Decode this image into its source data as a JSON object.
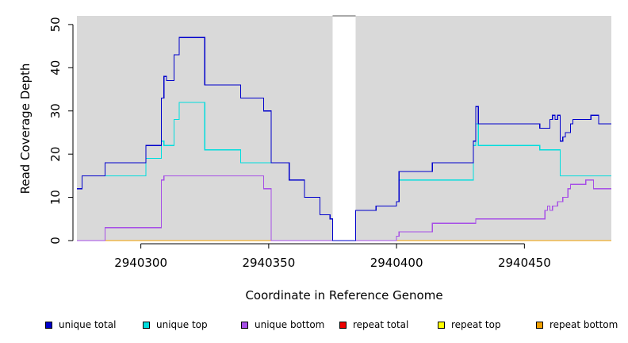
{
  "chart_data": {
    "type": "line",
    "title": "",
    "xlabel": "Coordinate in Reference Genome",
    "ylabel": "Read Coverage Depth",
    "xlim": [
      2940275,
      2940484
    ],
    "ylim": [
      0,
      52
    ],
    "x_ticks": [
      2940300,
      2940350,
      2940400,
      2940450
    ],
    "x_tick_labels": [
      "2940300",
      "2940350",
      "2940400",
      "2940450"
    ],
    "y_ticks": [
      0,
      10,
      20,
      30,
      40,
      50
    ],
    "y_tick_labels": [
      "0",
      "10",
      "20",
      "30",
      "40",
      "50"
    ],
    "background": "#d9d9d9",
    "gap": {
      "start": 2940375,
      "end": 2940384
    },
    "grid": false,
    "legend_position": "bottom",
    "series": [
      {
        "name": "unique total",
        "color": "#0000cc",
        "steps": [
          [
            2940275,
            12
          ],
          [
            2940277,
            15
          ],
          [
            2940286,
            18
          ],
          [
            2940302,
            22
          ],
          [
            2940308,
            33
          ],
          [
            2940309,
            38
          ],
          [
            2940310,
            37
          ],
          [
            2940313,
            43
          ],
          [
            2940315,
            47
          ],
          [
            2940325,
            36
          ],
          [
            2940339,
            33
          ],
          [
            2940348,
            30
          ],
          [
            2940351,
            18
          ],
          [
            2940358,
            14
          ],
          [
            2940364,
            10
          ],
          [
            2940370,
            6
          ],
          [
            2940374,
            5
          ],
          [
            2940375,
            0
          ],
          [
            2940384,
            7
          ],
          [
            2940392,
            8
          ],
          [
            2940400,
            9
          ],
          [
            2940401,
            16
          ],
          [
            2940414,
            18
          ],
          [
            2940430,
            23
          ],
          [
            2940431,
            31
          ],
          [
            2940432,
            27
          ],
          [
            2940456,
            26
          ],
          [
            2940460,
            28
          ],
          [
            2940461,
            29
          ],
          [
            2940462,
            28
          ],
          [
            2940463,
            29
          ],
          [
            2940464,
            23
          ],
          [
            2940465,
            24
          ],
          [
            2940466,
            25
          ],
          [
            2940468,
            27
          ],
          [
            2940469,
            28
          ],
          [
            2940476,
            29
          ],
          [
            2940479,
            27
          ],
          [
            2940484,
            27
          ]
        ]
      },
      {
        "name": "unique top",
        "color": "#00dddd",
        "steps": [
          [
            2940275,
            12
          ],
          [
            2940277,
            15
          ],
          [
            2940302,
            19
          ],
          [
            2940308,
            23
          ],
          [
            2940309,
            22
          ],
          [
            2940313,
            28
          ],
          [
            2940315,
            32
          ],
          [
            2940325,
            21
          ],
          [
            2940339,
            18
          ],
          [
            2940351,
            18
          ],
          [
            2940358,
            14
          ],
          [
            2940364,
            10
          ],
          [
            2940370,
            6
          ],
          [
            2940374,
            5
          ],
          [
            2940375,
            0
          ],
          [
            2940384,
            7
          ],
          [
            2940392,
            8
          ],
          [
            2940400,
            9
          ],
          [
            2940401,
            14
          ],
          [
            2940430,
            22
          ],
          [
            2940431,
            27
          ],
          [
            2940432,
            22
          ],
          [
            2940456,
            21
          ],
          [
            2940464,
            15
          ],
          [
            2940484,
            15
          ]
        ]
      },
      {
        "name": "unique bottom",
        "color": "#a64ee6",
        "steps": [
          [
            2940275,
            0
          ],
          [
            2940286,
            3
          ],
          [
            2940308,
            14
          ],
          [
            2940309,
            15
          ],
          [
            2940339,
            15
          ],
          [
            2940348,
            12
          ],
          [
            2940351,
            0
          ],
          [
            2940375,
            0
          ],
          [
            2940384,
            0
          ],
          [
            2940400,
            1
          ],
          [
            2940401,
            2
          ],
          [
            2940414,
            4
          ],
          [
            2940431,
            5
          ],
          [
            2940458,
            7
          ],
          [
            2940459,
            8
          ],
          [
            2940460,
            7
          ],
          [
            2940461,
            8
          ],
          [
            2940463,
            9
          ],
          [
            2940465,
            10
          ],
          [
            2940467,
            12
          ],
          [
            2940468,
            13
          ],
          [
            2940474,
            14
          ],
          [
            2940477,
            12
          ],
          [
            2940484,
            12
          ]
        ]
      },
      {
        "name": "repeat total",
        "color": "#ee0000",
        "steps": [
          [
            2940275,
            0
          ],
          [
            2940484,
            0
          ]
        ]
      },
      {
        "name": "repeat top",
        "color": "#ffff00",
        "steps": [
          [
            2940275,
            0
          ],
          [
            2940484,
            0
          ]
        ]
      },
      {
        "name": "repeat bottom",
        "color": "#f0a000",
        "steps": [
          [
            2940275,
            0
          ],
          [
            2940484,
            0
          ]
        ]
      }
    ]
  }
}
